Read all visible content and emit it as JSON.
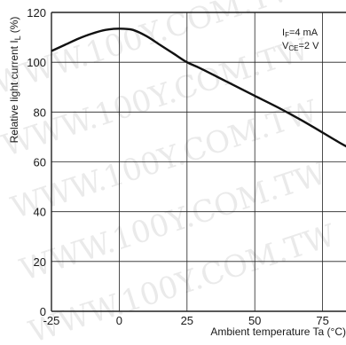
{
  "chart_data": {
    "type": "line",
    "xlabel": "Ambient temperature Ta (°C)",
    "ylabel": "Relative light current I",
    "ylabel_sub": "L",
    "ylabel_unit": "(%)",
    "xlim": [
      -25,
      100
    ],
    "ylim": [
      0,
      120
    ],
    "x_ticks": [
      -25,
      0,
      25,
      50,
      75
    ],
    "y_ticks": [
      0,
      20,
      40,
      60,
      80,
      100,
      120
    ],
    "grid": true,
    "annotations": [
      {
        "main": "I",
        "sub": "F",
        "rest": "=4 mA"
      },
      {
        "main": "V",
        "sub": "CE",
        "rest": "=2 V"
      }
    ],
    "watermark": "WWW.100Y.COM.TW",
    "series": [
      {
        "x": [
          -25,
          -20,
          -15,
          -10,
          -5,
          0,
          5,
          10,
          15,
          20,
          25,
          30,
          40,
          50,
          60,
          70,
          80,
          85
        ],
        "values": [
          104.5,
          107,
          109.5,
          111.5,
          113,
          113.5,
          113,
          110.5,
          107,
          103.5,
          100,
          97.5,
          92,
          86.5,
          81,
          75,
          68.5,
          65.5
        ]
      }
    ]
  }
}
